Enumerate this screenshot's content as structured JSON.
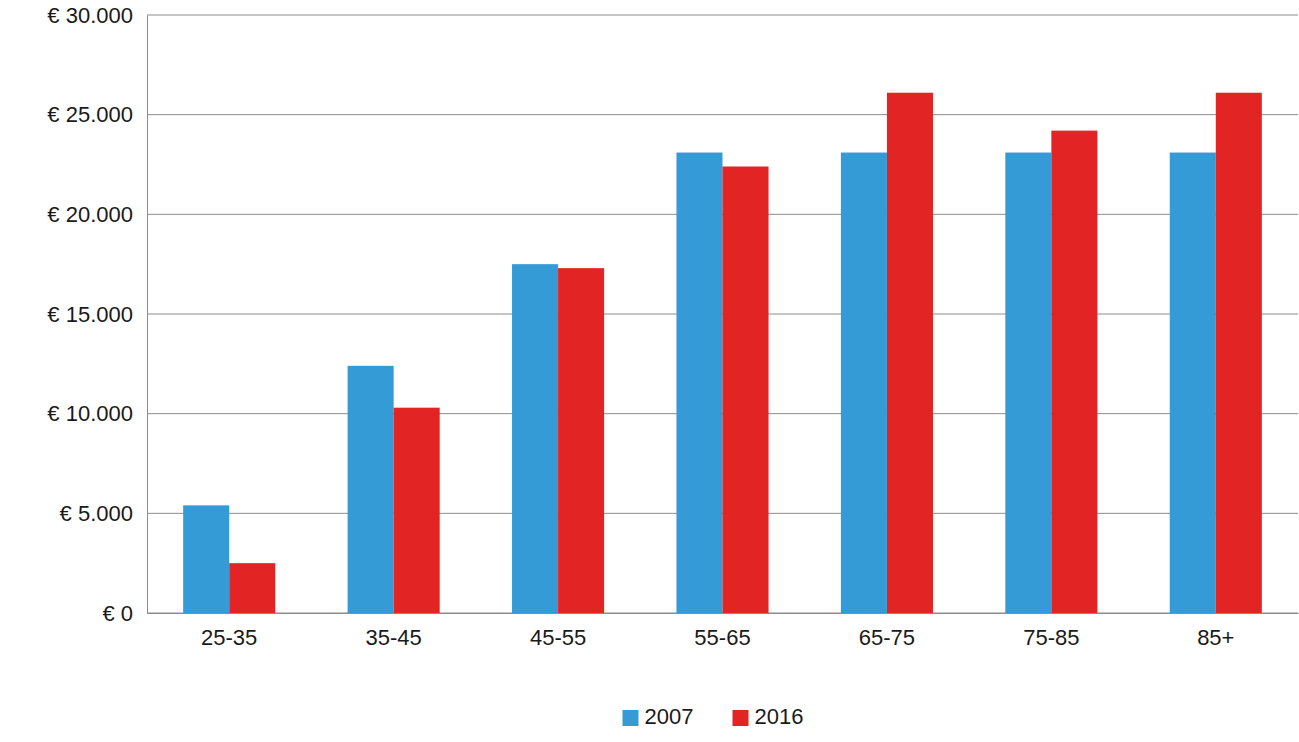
{
  "chart_data": {
    "type": "bar",
    "categories": [
      "25-35",
      "35-45",
      "45-55",
      "55-65",
      "65-75",
      "75-85",
      "85+"
    ],
    "series": [
      {
        "name": "2007",
        "color": "#349bd6",
        "values": [
          5400,
          12400,
          17500,
          23100,
          23100,
          23100,
          23100
        ]
      },
      {
        "name": "2016",
        "color": "#e22424",
        "values": [
          2500,
          10300,
          17300,
          22400,
          26100,
          24200,
          26100
        ]
      }
    ],
    "ylim": [
      0,
      30000
    ],
    "yticks": [
      {
        "value": 0,
        "label": "€ 0"
      },
      {
        "value": 5000,
        "label": "€ 5.000"
      },
      {
        "value": 10000,
        "label": "€ 10.000"
      },
      {
        "value": 15000,
        "label": "€ 15.000"
      },
      {
        "value": 20000,
        "label": "€ 20.000"
      },
      {
        "value": 25000,
        "label": "€ 25.000"
      },
      {
        "value": 30000,
        "label": "€ 30.000"
      }
    ],
    "grid": true,
    "legend": "bottom"
  }
}
